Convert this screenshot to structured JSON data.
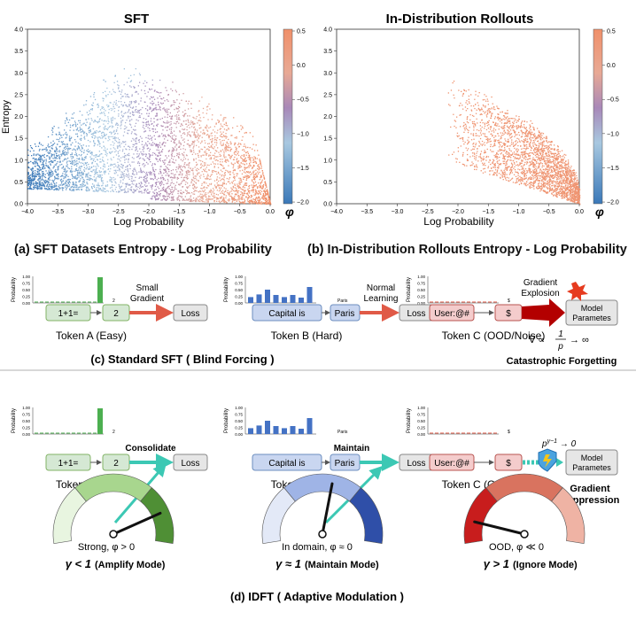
{
  "plots": {
    "sft": {
      "title": "SFT",
      "xlabel": "Log Probability",
      "ylabel": "Entropy"
    },
    "idr": {
      "title": "In-Distribution Rollouts",
      "xlabel": "Log Probability"
    },
    "xticks": [
      "−4.0",
      "−3.5",
      "−3.0",
      "−2.5",
      "−2.0",
      "−1.5",
      "−1.0",
      "−0.5",
      "0.0"
    ],
    "yticks": [
      "0.0",
      "0.5",
      "1.0",
      "1.5",
      "2.0",
      "2.5",
      "3.0",
      "3.5",
      "4.0"
    ],
    "cbticks": [
      "0.5",
      "0.0",
      "−0.5",
      "−1.0",
      "−1.5",
      "−2.0"
    ],
    "cblabel": "φ",
    "caption_a": "(a) SFT Datasets Entropy - Log Probability",
    "caption_b": "(b) In-Distribution Rollouts Entropy - Log Probability"
  },
  "chart_data": [
    {
      "type": "scatter",
      "title": "SFT",
      "xlabel": "Log Probability",
      "ylabel": "Entropy",
      "xlim": [
        -4.0,
        0.0
      ],
      "ylim": [
        0.0,
        4.0
      ],
      "colorbar": {
        "label": "φ",
        "range": [
          -2.0,
          0.5
        ]
      },
      "description_points": [
        {
          "x": -3.5,
          "y": 0.6
        },
        {
          "x": -3.0,
          "y": 1.4
        },
        {
          "x": -2.5,
          "y": 2.2
        },
        {
          "x": -2.0,
          "y": 2.3
        },
        {
          "x": -1.5,
          "y": 2.0
        },
        {
          "x": -1.0,
          "y": 1.6
        },
        {
          "x": -0.5,
          "y": 1.0
        },
        {
          "x": 0.0,
          "y": 0.0
        }
      ]
    },
    {
      "type": "scatter",
      "title": "In-Distribution Rollouts",
      "xlabel": "Log Probability",
      "xlim": [
        -4.0,
        0.0
      ],
      "ylim": [
        0.0,
        4.0
      ],
      "colorbar": {
        "label": "φ",
        "range": [
          -2.0,
          0.5
        ]
      },
      "description_points": [
        {
          "x": -2.0,
          "y": 2.4
        },
        {
          "x": -1.5,
          "y": 2.2
        },
        {
          "x": -1.0,
          "y": 1.5
        },
        {
          "x": -0.5,
          "y": 0.8
        },
        {
          "x": 0.0,
          "y": 0.0
        }
      ]
    }
  ],
  "bar": {
    "ylabel": "Probability",
    "ticks": [
      "1.00",
      "0.75",
      "0.50",
      "0.25",
      "0.00"
    ]
  },
  "sec_c": {
    "a": {
      "in": "1+1=",
      "out": "2",
      "loss": "Loss",
      "sub": "2",
      "arrow": "Small\nGradient",
      "token": "Token A (Easy)"
    },
    "b": {
      "in": "Capital is",
      "out": "Paris",
      "loss": "Loss",
      "sub": "Paris",
      "arrow": "Normal\nLearning",
      "token": "Token B (Hard)"
    },
    "c": {
      "in": "User:@#",
      "out": "$",
      "sub": "$",
      "arrow": "Gradient\nExplosion",
      "model": "Model\nParametes",
      "token": "Token C (OOD/Noise)",
      "formula_left": "∇ ∝",
      "formula_num": "1",
      "formula_den": "p",
      "formula_right": "→ ∞",
      "forget": "Catastrophic Forgetting"
    },
    "caption": "(c) Standard SFT ( Blind Forcing )"
  },
  "sec_d": {
    "a": {
      "in": "1+1=",
      "out": "2",
      "loss": "Loss",
      "sub": "2",
      "arrow": "Consolidate",
      "token": "Token A (Easy)",
      "gauge": "Strong, φ > 0",
      "mode_sym": "γ < 1",
      "mode": "(Amplify Mode)"
    },
    "b": {
      "in": "Capital is",
      "out": "Paris",
      "loss": "Loss",
      "sub": "Paris",
      "arrow": "Maintain",
      "token": "Token B (Hard)",
      "gauge": "In domain, φ ≈ 0",
      "mode_sym": "γ ≈ 1",
      "mode": "(Maintain Mode)"
    },
    "c": {
      "in": "User:@#",
      "out": "$",
      "sub": "$",
      "model": "Model\nParametes",
      "formula": "p^(γ−1) → 0",
      "token": "Token C (OOD/Noise)",
      "suppress": "Gradient\nSuppression",
      "gauge": "OOD, φ ≪ 0",
      "mode_sym": "γ > 1",
      "mode": "(Ignore Mode)"
    },
    "caption": "(d) IDFT ( Adaptive Modulation )"
  },
  "colors": {
    "green": "#d5e8d4",
    "green_border": "#82b366",
    "blue": "#c9d6f0",
    "blue_border": "#6c8ebf",
    "red": "#f4cccc",
    "red_border": "#b85450",
    "grey": "#e6e6e6",
    "bar_green": "#4caf50",
    "bar_blue": "#4472c4",
    "arrow_red": "#e05a47",
    "arrow_teal": "#3cc8b4"
  }
}
